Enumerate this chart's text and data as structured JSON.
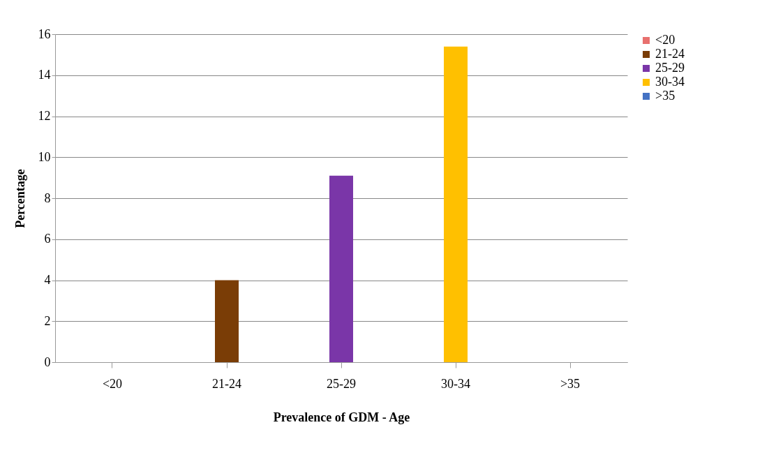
{
  "chart_data": {
    "type": "bar",
    "xlabel": "Prevalence of GDM - Age",
    "ylabel": "Percentage",
    "categories": [
      "<20",
      "21-24",
      "25-29",
      "30-34",
      ">35"
    ],
    "series": [
      {
        "name": "<20",
        "color": "#e8706e",
        "values": [
          0,
          null,
          null,
          null,
          null
        ]
      },
      {
        "name": "21-24",
        "color": "#7a3d06",
        "values": [
          null,
          4,
          null,
          null,
          null
        ]
      },
      {
        "name": "25-29",
        "color": "#7a36a8",
        "values": [
          null,
          null,
          9.1,
          null,
          null
        ]
      },
      {
        "name": "30-34",
        "color": "#ffc000",
        "values": [
          null,
          null,
          null,
          15.4,
          null
        ]
      },
      {
        "name": ">35",
        "color": "#4472c4",
        "values": [
          null,
          null,
          null,
          null,
          0
        ]
      }
    ],
    "ylim": [
      0,
      16
    ],
    "yticks": [
      0,
      2,
      4,
      6,
      8,
      10,
      12,
      14,
      16
    ],
    "grid": "y",
    "legend": "right"
  }
}
